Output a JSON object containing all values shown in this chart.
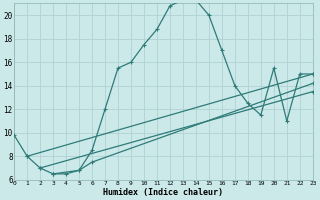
{
  "xlabel": "Humidex (Indice chaleur)",
  "bg_color": "#cce9ea",
  "grid_color": "#b0d0d2",
  "line_color": "#2e7b78",
  "ylim": [
    6,
    21
  ],
  "xlim": [
    0,
    23
  ],
  "yticks": [
    6,
    8,
    10,
    12,
    14,
    16,
    18,
    20
  ],
  "xticks": [
    0,
    1,
    2,
    3,
    4,
    5,
    6,
    7,
    8,
    9,
    10,
    11,
    12,
    13,
    14,
    15,
    16,
    17,
    18,
    19,
    20,
    21,
    22,
    23
  ],
  "curve1_x": [
    0,
    1,
    2,
    3,
    4,
    5,
    6,
    7,
    8,
    9,
    10,
    11,
    12,
    13,
    14,
    15,
    16,
    17,
    18,
    19,
    20,
    21,
    22,
    23
  ],
  "curve1_y": [
    9.8,
    8.0,
    7.0,
    6.5,
    6.5,
    6.8,
    8.5,
    12.0,
    15.5,
    16.0,
    17.5,
    18.8,
    20.8,
    21.3,
    21.3,
    20.0,
    17.0,
    14.0,
    12.5,
    11.5,
    15.5,
    11.0,
    15.0,
    15.0
  ],
  "line2_x": [
    1,
    23
  ],
  "line2_y": [
    8.0,
    15.0
  ],
  "line3_x": [
    2,
    23
  ],
  "line3_y": [
    7.0,
    13.5
  ],
  "line4_x": [
    3,
    5,
    6,
    23
  ],
  "line4_y": [
    6.5,
    6.8,
    7.5,
    14.2
  ]
}
